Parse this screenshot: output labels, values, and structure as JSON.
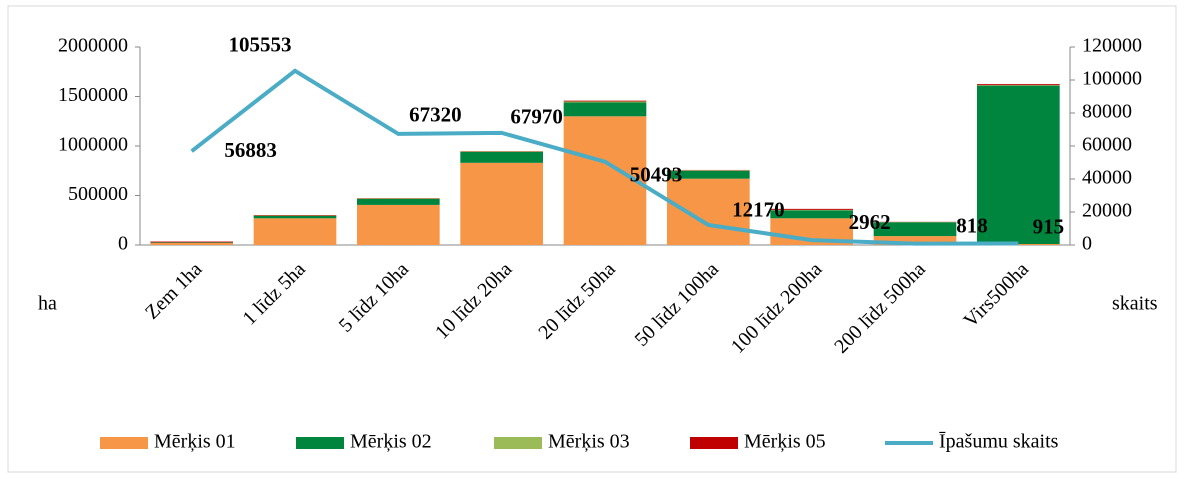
{
  "chart_data": {
    "type": "bar",
    "y_label": "ha",
    "y2_label": "skaits",
    "categories": [
      "Zem 1ha",
      "1 līdz 5ha",
      "5 līdz 10ha",
      "10 līdz 20ha",
      "20 līdz 50ha",
      "50 līdz 100ha",
      "100 līdz 200ha",
      "200 līdz 500ha",
      "Virs500ha"
    ],
    "series": [
      {
        "name": "Mērķis 01",
        "color": "#f79646",
        "values": [
          20000,
          270000,
          405000,
          830000,
          1300000,
          670000,
          270000,
          90000,
          10000
        ]
      },
      {
        "name": "Mērķis 02",
        "color": "#00853f",
        "values": [
          5000,
          25000,
          60000,
          110000,
          140000,
          80000,
          80000,
          140000,
          1600000
        ]
      },
      {
        "name": "Mērķis 03",
        "color": "#9bbb59",
        "values": [
          2000,
          3000,
          5000,
          5000,
          10000,
          5000,
          5000,
          2000,
          5000
        ]
      },
      {
        "name": "Mērķis 05",
        "color": "#c00000",
        "values": [
          8000,
          5000,
          3000,
          3000,
          8000,
          3000,
          10000,
          2000,
          10000
        ]
      },
      {
        "name": "Īpašumu skaits",
        "type": "line",
        "axis": "y2",
        "color": "#4bacc6",
        "values": [
          56883,
          105553,
          67320,
          67970,
          50493,
          12170,
          2962,
          818,
          915
        ]
      }
    ],
    "ylim": [
      0,
      2000000
    ],
    "yticks": [
      0,
      500000,
      1000000,
      1500000,
      2000000
    ],
    "y2lim": [
      0,
      120000
    ],
    "y2ticks": [
      0,
      20000,
      40000,
      60000,
      80000,
      100000,
      120000
    ],
    "legend": "bottom"
  }
}
